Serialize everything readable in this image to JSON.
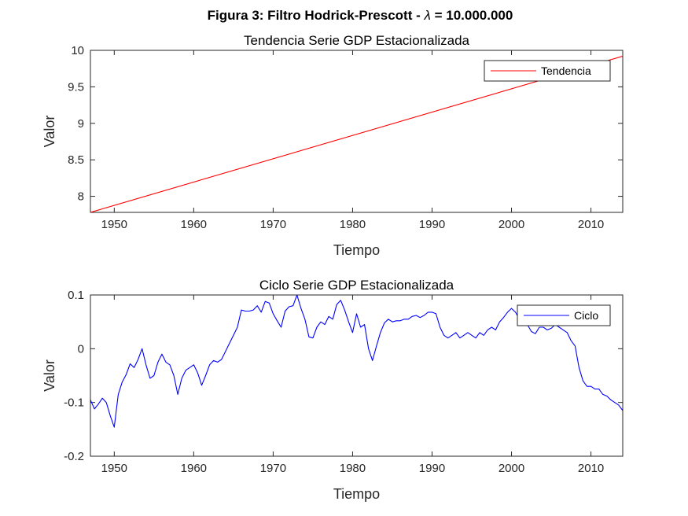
{
  "figure": {
    "title_prefix": "Figura 3: Filtro Hodrick-Prescott - ",
    "title_symbol": "λ",
    "title_suffix": " = 10.000.000"
  },
  "chart_data": [
    {
      "type": "line",
      "title": "Tendencia Serie GDP Estacionalizada",
      "xlabel": "Tiempo",
      "ylabel": "Valor",
      "xlim": [
        1947,
        2014
      ],
      "ylim": [
        7.78,
        10.0
      ],
      "xticks": [
        1950,
        1960,
        1970,
        1980,
        1990,
        2000,
        2010
      ],
      "yticks": [
        8,
        8.5,
        9,
        9.5,
        10
      ],
      "ytick_labels": [
        "8",
        "8.5",
        "9",
        "9.5",
        "10"
      ],
      "legend_position": "top-right",
      "series": [
        {
          "name": "Tendencia",
          "color": "#ff0000",
          "x": [
            1947,
            2014
          ],
          "values": [
            7.78,
            9.92
          ]
        }
      ]
    },
    {
      "type": "line",
      "title": "Ciclo Serie GDP Estacionalizada",
      "xlabel": "Tiempo",
      "ylabel": "Valor",
      "xlim": [
        1947,
        2014
      ],
      "ylim": [
        -0.2,
        0.1
      ],
      "xticks": [
        1950,
        1960,
        1970,
        1980,
        1990,
        2000,
        2010
      ],
      "yticks": [
        -0.2,
        -0.1,
        0,
        0.1
      ],
      "ytick_labels": [
        "-0.2",
        "-0.1",
        "0",
        "0.1"
      ],
      "legend_position": "top-right",
      "series": [
        {
          "name": "Ciclo",
          "color": "#0000ff",
          "x": [
            1947.0,
            1947.5,
            1948.0,
            1948.5,
            1949.0,
            1949.5,
            1950.0,
            1950.5,
            1951.0,
            1951.5,
            1952.0,
            1952.5,
            1953.0,
            1953.5,
            1954.0,
            1954.5,
            1955.0,
            1955.5,
            1956.0,
            1956.5,
            1957.0,
            1957.5,
            1958.0,
            1958.5,
            1959.0,
            1959.5,
            1960.0,
            1960.5,
            1961.0,
            1961.5,
            1962.0,
            1962.5,
            1963.0,
            1963.5,
            1964.0,
            1964.5,
            1965.0,
            1965.5,
            1966.0,
            1966.5,
            1967.0,
            1967.5,
            1968.0,
            1968.5,
            1969.0,
            1969.5,
            1970.0,
            1970.5,
            1971.0,
            1971.5,
            1972.0,
            1972.5,
            1973.0,
            1973.5,
            1974.0,
            1974.5,
            1975.0,
            1975.5,
            1976.0,
            1976.5,
            1977.0,
            1977.5,
            1978.0,
            1978.5,
            1979.0,
            1979.5,
            1980.0,
            1980.5,
            1981.0,
            1981.5,
            1982.0,
            1982.5,
            1983.0,
            1983.5,
            1984.0,
            1984.5,
            1985.0,
            1985.5,
            1986.0,
            1986.5,
            1987.0,
            1987.5,
            1988.0,
            1988.5,
            1989.0,
            1989.5,
            1990.0,
            1990.5,
            1991.0,
            1991.5,
            1992.0,
            1992.5,
            1993.0,
            1993.5,
            1994.0,
            1994.5,
            1995.0,
            1995.5,
            1996.0,
            1996.5,
            1997.0,
            1997.5,
            1998.0,
            1998.5,
            1999.0,
            1999.5,
            2000.0,
            2000.5,
            2001.0,
            2001.5,
            2002.0,
            2002.5,
            2003.0,
            2003.5,
            2004.0,
            2004.5,
            2005.0,
            2005.5,
            2006.0,
            2006.5,
            2007.0,
            2007.5,
            2008.0,
            2008.5,
            2009.0,
            2009.5,
            2010.0,
            2010.5,
            2011.0,
            2011.5,
            2012.0,
            2012.5,
            2013.0,
            2013.5,
            2014.0
          ],
          "values": [
            -0.095,
            -0.112,
            -0.103,
            -0.092,
            -0.1,
            -0.125,
            -0.146,
            -0.085,
            -0.062,
            -0.048,
            -0.028,
            -0.035,
            -0.02,
            0.0,
            -0.03,
            -0.055,
            -0.05,
            -0.025,
            -0.01,
            -0.025,
            -0.03,
            -0.05,
            -0.085,
            -0.055,
            -0.04,
            -0.035,
            -0.03,
            -0.045,
            -0.068,
            -0.05,
            -0.03,
            -0.022,
            -0.025,
            -0.02,
            -0.005,
            0.01,
            0.025,
            0.04,
            0.072,
            0.07,
            0.07,
            0.072,
            0.08,
            0.068,
            0.088,
            0.085,
            0.065,
            0.052,
            0.04,
            0.07,
            0.078,
            0.08,
            0.1,
            0.075,
            0.055,
            0.022,
            0.02,
            0.04,
            0.05,
            0.045,
            0.06,
            0.055,
            0.082,
            0.09,
            0.072,
            0.05,
            0.03,
            0.065,
            0.04,
            0.045,
            0.0,
            -0.022,
            0.005,
            0.03,
            0.048,
            0.055,
            0.05,
            0.052,
            0.052,
            0.055,
            0.055,
            0.06,
            0.062,
            0.058,
            0.062,
            0.068,
            0.068,
            0.065,
            0.04,
            0.025,
            0.02,
            0.025,
            0.03,
            0.02,
            0.025,
            0.03,
            0.025,
            0.02,
            0.03,
            0.025,
            0.035,
            0.04,
            0.035,
            0.05,
            0.058,
            0.068,
            0.075,
            0.068,
            0.055,
            0.048,
            0.045,
            0.032,
            0.028,
            0.04,
            0.04,
            0.035,
            0.038,
            0.045,
            0.04,
            0.035,
            0.03,
            0.015,
            0.005,
            -0.035,
            -0.06,
            -0.07,
            -0.07,
            -0.075,
            -0.075,
            -0.085,
            -0.088,
            -0.095,
            -0.1,
            -0.105,
            -0.115
          ]
        }
      ]
    }
  ]
}
